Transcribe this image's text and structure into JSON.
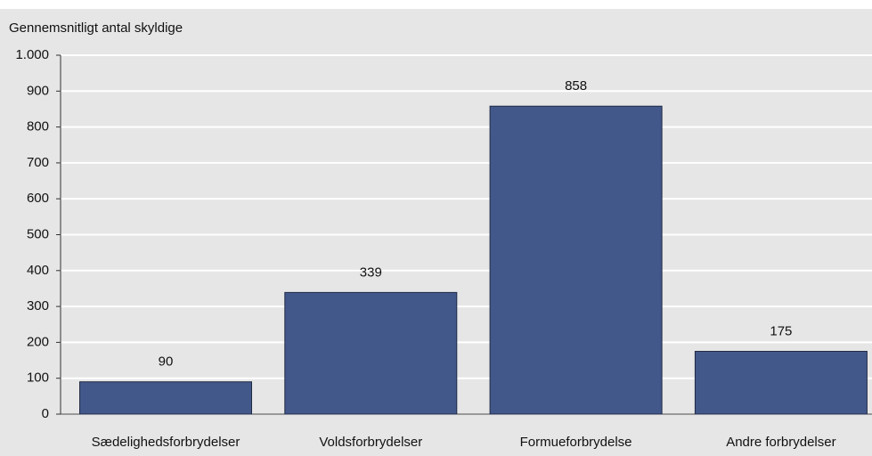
{
  "chart_data": {
    "type": "bar",
    "title": "Gennemsnitligt antal skyldige",
    "categories": [
      "Sædelighedsforbrydelser",
      "Voldsforbrydelser",
      "Formueforbrydelse",
      "Andre forbrydelser"
    ],
    "values": [
      90,
      339,
      858,
      175
    ],
    "color": "#43588a",
    "ylim": [
      0,
      1000
    ],
    "yticks": [
      0,
      100,
      200,
      300,
      400,
      500,
      600,
      700,
      800,
      900,
      {
        "value": 1000,
        "label": "1.000"
      }
    ],
    "grid": true
  }
}
